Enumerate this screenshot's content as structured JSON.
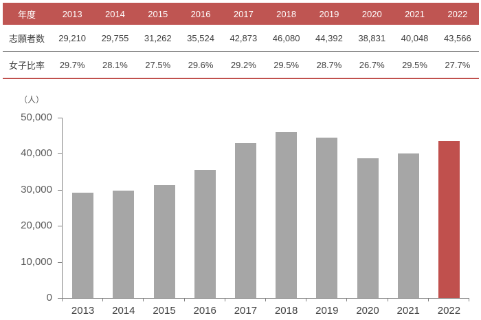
{
  "table": {
    "corner_label": "年度",
    "years": [
      "2013",
      "2014",
      "2015",
      "2016",
      "2017",
      "2018",
      "2019",
      "2020",
      "2021",
      "2022"
    ],
    "rows": [
      {
        "label": "志願者数",
        "values": [
          "29,210",
          "29,755",
          "31,262",
          "35,524",
          "42,873",
          "46,080",
          "44,392",
          "38,831",
          "40,048",
          "43,566"
        ]
      },
      {
        "label": "女子比率",
        "values": [
          "29.7%",
          "28.1%",
          "27.5%",
          "29.6%",
          "29.2%",
          "29.5%",
          "28.7%",
          "26.7%",
          "29.5%",
          "27.7%"
        ]
      }
    ]
  },
  "chart_data": {
    "type": "bar",
    "title": "",
    "unit_label": "（人）",
    "xlabel": "",
    "ylabel": "",
    "categories": [
      "2013",
      "2014",
      "2015",
      "2016",
      "2017",
      "2018",
      "2019",
      "2020",
      "2021",
      "2022"
    ],
    "values": [
      29210,
      29755,
      31262,
      35524,
      42873,
      46080,
      44392,
      38831,
      40048,
      43566
    ],
    "highlight_index": 9,
    "ylim": [
      0,
      50000
    ],
    "yticks": [
      0,
      10000,
      20000,
      30000,
      40000,
      50000
    ],
    "ytick_labels": [
      "0",
      "10,000",
      "20,000",
      "30,000",
      "40,000",
      "50,000"
    ],
    "grid": false,
    "legend_position": "none"
  },
  "colors": {
    "table_header_bg": "#bf5552",
    "table_header_text": "#ffffff",
    "table_body_text": "#404040",
    "row_separator": "#595959",
    "accent_underline": "#c0504d",
    "bar_default": "#a6a6a6",
    "bar_highlight": "#c0504d",
    "axis_line": "#808080",
    "axis_label_text": "#595959",
    "x_label_text": "#404040"
  }
}
